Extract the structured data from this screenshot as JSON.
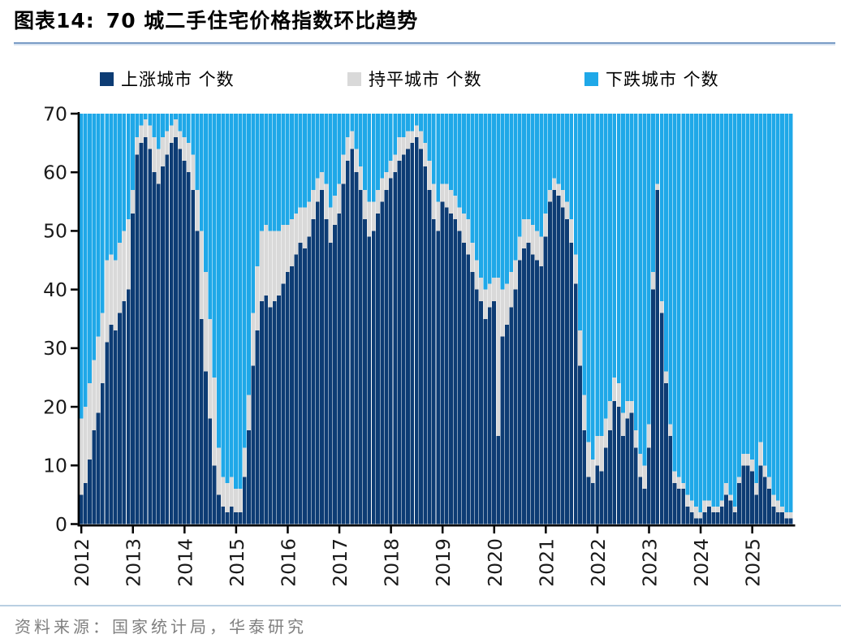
{
  "page": {
    "exhibit_label": "图表14:",
    "title": "70 城二手住宅价格指数环比趋势",
    "source_note": "资料来源：国家统计局，华泰研究"
  },
  "style": {
    "title_rule_color": "#7a9cc6",
    "footer_rule_color": "#b9cfe2",
    "axis_color": "#000000",
    "tick_label_color": "#1a1a1a",
    "background": "#ffffff"
  },
  "chart_data": {
    "type": "bar",
    "stacked": true,
    "stack_total": 70,
    "title": "70 城二手住宅价格指数环比趋势",
    "x_period": "monthly",
    "x_start": "2012-01",
    "x_end": "2025-10",
    "x_tick_labels": [
      "2012",
      "2013",
      "2014",
      "2015",
      "2016",
      "2017",
      "2018",
      "2019",
      "2020",
      "2021",
      "2022",
      "2023",
      "2024",
      "2025"
    ],
    "ylim": [
      0,
      70
    ],
    "y_ticks": [
      0,
      10,
      20,
      30,
      40,
      50,
      60,
      70
    ],
    "legend_position": "top",
    "grid": false,
    "series": [
      {
        "name": "上涨城市 个数",
        "color": "#0d3c74",
        "values": [
          5,
          7,
          11,
          16,
          19,
          24,
          31,
          34,
          33,
          36,
          38,
          40,
          53,
          63,
          65,
          66,
          64,
          60,
          58,
          61,
          63,
          65,
          66,
          64,
          62,
          60,
          57,
          50,
          35,
          26,
          18,
          10,
          5,
          3,
          2,
          3,
          2,
          2,
          8,
          16,
          27,
          33,
          38,
          39,
          37,
          38,
          39,
          41,
          43,
          44,
          46,
          48,
          47,
          49,
          52,
          55,
          57,
          52,
          48,
          51,
          53,
          58,
          62,
          64,
          60,
          57,
          52,
          49,
          50,
          53,
          55,
          57,
          59,
          60,
          62,
          63,
          64,
          65,
          66,
          64,
          61,
          57,
          52,
          50,
          55,
          54,
          53,
          52,
          50,
          48,
          46,
          43,
          40,
          38,
          35,
          37,
          38,
          15,
          32,
          34,
          37,
          40,
          45,
          47,
          48,
          46,
          45,
          44,
          49,
          55,
          57,
          56,
          54,
          52,
          48,
          41,
          27,
          16,
          8,
          7,
          10,
          9,
          13,
          16,
          21,
          20,
          15,
          18,
          19,
          13,
          8,
          6,
          13,
          40,
          57,
          36,
          24,
          15,
          7,
          6,
          6,
          3,
          2,
          1,
          1,
          2,
          3,
          2,
          2,
          3,
          5,
          4,
          2,
          7,
          10,
          10,
          9,
          5,
          10,
          8,
          6,
          3,
          2,
          2,
          1,
          1
        ]
      },
      {
        "name": "持平城市 个数",
        "color": "#d9d9d9",
        "values": [
          13,
          13,
          13,
          12,
          13,
          12,
          14,
          12,
          12,
          12,
          12,
          12,
          4,
          3,
          3,
          3,
          4,
          6,
          6,
          5,
          4,
          3,
          3,
          3,
          4,
          5,
          6,
          7,
          15,
          17,
          17,
          15,
          8,
          5,
          5,
          5,
          4,
          4,
          5,
          6,
          9,
          11,
          12,
          12,
          13,
          12,
          11,
          10,
          8,
          8,
          7,
          6,
          7,
          6,
          5,
          4,
          3,
          6,
          6,
          5,
          5,
          5,
          4,
          3,
          4,
          4,
          5,
          6,
          5,
          4,
          4,
          3,
          3,
          3,
          4,
          3,
          3,
          2,
          2,
          3,
          4,
          5,
          6,
          5,
          3,
          4,
          4,
          4,
          4,
          5,
          6,
          5,
          5,
          4,
          5,
          4,
          4,
          27,
          8,
          7,
          6,
          5,
          4,
          5,
          4,
          5,
          5,
          5,
          4,
          2,
          2,
          2,
          3,
          3,
          4,
          5,
          6,
          6,
          6,
          4,
          5,
          6,
          5,
          5,
          4,
          4,
          4,
          3,
          2,
          3,
          4,
          4,
          4,
          3,
          1,
          2,
          2,
          2,
          2,
          2,
          1,
          2,
          2,
          2,
          1,
          2,
          1,
          1,
          1,
          1,
          2,
          1,
          1,
          1,
          2,
          2,
          2,
          2,
          4,
          2,
          2,
          2,
          2,
          1,
          1,
          1
        ]
      },
      {
        "name": "下跌城市 个数",
        "color": "#1fa8e8",
        "values": [
          52,
          50,
          46,
          42,
          38,
          34,
          25,
          24,
          25,
          22,
          20,
          18,
          13,
          4,
          2,
          1,
          2,
          4,
          6,
          4,
          3,
          2,
          1,
          3,
          4,
          5,
          7,
          13,
          20,
          27,
          35,
          45,
          57,
          62,
          63,
          62,
          64,
          64,
          57,
          48,
          34,
          26,
          20,
          19,
          20,
          20,
          20,
          19,
          19,
          18,
          17,
          16,
          16,
          15,
          13,
          11,
          10,
          12,
          16,
          14,
          12,
          7,
          4,
          3,
          6,
          9,
          13,
          15,
          15,
          13,
          11,
          10,
          8,
          7,
          4,
          4,
          3,
          3,
          2,
          3,
          5,
          8,
          12,
          15,
          12,
          12,
          13,
          14,
          16,
          17,
          18,
          22,
          25,
          28,
          30,
          29,
          28,
          28,
          30,
          29,
          27,
          25,
          21,
          18,
          18,
          19,
          20,
          21,
          17,
          13,
          11,
          12,
          13,
          15,
          18,
          24,
          37,
          48,
          56,
          59,
          55,
          55,
          52,
          49,
          45,
          46,
          51,
          49,
          49,
          54,
          58,
          60,
          53,
          27,
          12,
          32,
          44,
          53,
          61,
          62,
          63,
          65,
          66,
          67,
          68,
          66,
          66,
          67,
          67,
          66,
          63,
          65,
          67,
          62,
          58,
          58,
          59,
          63,
          56,
          60,
          62,
          65,
          66,
          67,
          68,
          68
        ]
      }
    ]
  }
}
